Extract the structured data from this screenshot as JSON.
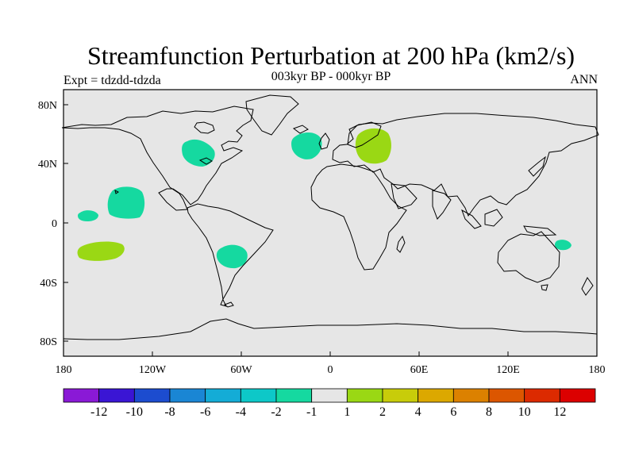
{
  "figure": {
    "title": "Streamfunction Perturbation at 200 hPa (km2/s)",
    "left_string": "Expt = tdzdd-tdzda",
    "center_string": "003kyr BP - 000kyr BP",
    "right_string": "ANN"
  },
  "map": {
    "projection": "cylindrical equidistant",
    "lon_range": [
      -180,
      180
    ],
    "lat_range": [
      -90,
      90
    ],
    "lat_ticks": [
      "80N",
      "40N",
      "0",
      "40S",
      "80S"
    ],
    "lon_ticks": [
      "180",
      "120W",
      "60W",
      "0",
      "60E",
      "120E",
      "180"
    ],
    "ocean_fill": "#e6e6e6",
    "coastline_color": "#000000"
  },
  "colorbar": {
    "labels": [
      "-12",
      "-10",
      "-8",
      "-6",
      "-4",
      "-2",
      "-1",
      "1",
      "2",
      "4",
      "6",
      "8",
      "10",
      "12"
    ],
    "colors": [
      "#8a19d6",
      "#3a15d4",
      "#1c4ccf",
      "#1a86d4",
      "#14acd6",
      "#0dc8c8",
      "#15d9a0",
      "#e6e6e6",
      "#9ad814",
      "#c8cc0a",
      "#dca800",
      "#dc8100",
      "#dc5600",
      "#dc2a00",
      "#dc0000"
    ]
  },
  "chart_data": {
    "type": "map-contour",
    "variable": "Streamfunction Perturbation at 200 hPa",
    "units": "km2/s",
    "levels": [
      -12,
      -10,
      -8,
      -6,
      -4,
      -2,
      -1,
      1,
      2,
      4,
      6,
      8,
      10,
      12
    ],
    "shaded_regions": [
      {
        "name": "North America (Great Lakes)",
        "lon": -86,
        "lat": 46,
        "category": "-2 to -1"
      },
      {
        "name": "North Atlantic",
        "lon": -15,
        "lat": 50,
        "category": "-2 to -1"
      },
      {
        "name": "Eastern Europe",
        "lon": 30,
        "lat": 50,
        "category": "1 to 2"
      },
      {
        "name": "Central Pacific",
        "lon": -140,
        "lat": 13,
        "category": "-2 to -1"
      },
      {
        "name": "Equatorial Pacific",
        "lon": -168,
        "lat": 5,
        "category": "-2 to -1"
      },
      {
        "name": "South Pacific",
        "lon": -152,
        "lat": -20,
        "category": "1 to 2"
      },
      {
        "name": "South America",
        "lon": -66,
        "lat": -22,
        "category": "-2 to -1"
      },
      {
        "name": "Coral Sea",
        "lon": 158,
        "lat": -15,
        "category": "-2 to -1"
      }
    ]
  }
}
